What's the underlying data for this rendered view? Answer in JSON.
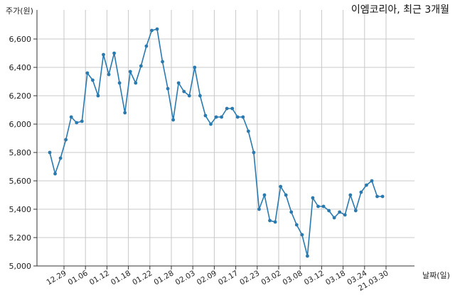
{
  "chart_data": {
    "type": "line",
    "title": "이엠코리아, 최근 3개월",
    "ylabel": "주가(원)",
    "xlabel": "날짜(일)",
    "ylim": [
      5000,
      6700
    ],
    "yticks": [
      5000,
      5200,
      5400,
      5600,
      5800,
      6000,
      6200,
      6400,
      6600
    ],
    "ytick_labels": [
      "5,000",
      "5,200",
      "5,400",
      "5,600",
      "5,800",
      "6,000",
      "6,200",
      "6,400",
      "6,600"
    ],
    "xtick_labels": [
      "12.29",
      "01.06",
      "01.12",
      "01.18",
      "01.22",
      "01.28",
      "02.03",
      "02.09",
      "02.17",
      "02.23",
      "03.02",
      "03.08",
      "03.12",
      "03.18",
      "03.24",
      "21.03.30"
    ],
    "grid": true,
    "legend": "none",
    "line_color": "#2a7ab0",
    "series": [
      {
        "values": [
          5800,
          5650,
          5760,
          5890,
          6050,
          6010,
          6020,
          6360,
          6310,
          6200,
          6490,
          6350,
          6500,
          6290,
          6080,
          6370,
          6290,
          6410,
          6550,
          6660,
          6670,
          6440,
          6250,
          6030,
          6290,
          6230,
          6200,
          6400,
          6200,
          6060,
          6000,
          6050,
          6050,
          6110,
          6110,
          6050,
          6050,
          5950,
          5800,
          5400,
          5500,
          5320,
          5310,
          5560,
          5500,
          5380,
          5290,
          5220,
          5070,
          5480,
          5420,
          5420,
          5390,
          5340,
          5380,
          5360,
          5500,
          5390,
          5520,
          5570,
          5600,
          5490,
          5490
        ]
      }
    ]
  }
}
